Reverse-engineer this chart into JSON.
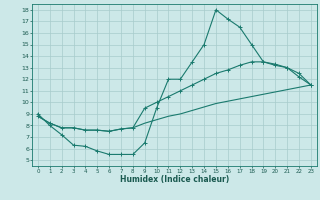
{
  "xlabel": "Humidex (Indice chaleur)",
  "bg_color": "#cce8e8",
  "grid_color": "#a8cccc",
  "line_color": "#1a7a6e",
  "xlim": [
    -0.5,
    23.5
  ],
  "ylim": [
    4.5,
    18.5
  ],
  "xticks": [
    0,
    1,
    2,
    3,
    4,
    5,
    6,
    7,
    8,
    9,
    10,
    11,
    12,
    13,
    14,
    15,
    16,
    17,
    18,
    19,
    20,
    21,
    22,
    23
  ],
  "yticks": [
    5,
    6,
    7,
    8,
    9,
    10,
    11,
    12,
    13,
    14,
    15,
    16,
    17,
    18
  ],
  "line1_x": [
    0,
    1,
    2,
    3,
    4,
    5,
    6,
    7,
    8,
    9,
    10,
    11,
    12,
    13,
    14,
    15,
    16,
    17,
    18,
    19,
    20,
    21,
    22,
    23
  ],
  "line1_y": [
    9.0,
    8.0,
    7.2,
    6.3,
    6.2,
    5.8,
    5.5,
    5.5,
    5.5,
    6.5,
    9.5,
    12.0,
    12.0,
    13.5,
    15.0,
    18.0,
    17.2,
    16.5,
    15.0,
    13.5,
    13.2,
    13.0,
    12.2,
    11.5
  ],
  "line2_x": [
    0,
    1,
    2,
    3,
    4,
    5,
    6,
    7,
    8,
    9,
    10,
    11,
    12,
    13,
    14,
    15,
    16,
    17,
    18,
    19,
    20,
    21,
    22,
    23
  ],
  "line2_y": [
    8.8,
    8.2,
    7.8,
    7.8,
    7.6,
    7.6,
    7.5,
    7.7,
    7.8,
    8.2,
    8.5,
    8.8,
    9.0,
    9.3,
    9.6,
    9.9,
    10.1,
    10.3,
    10.5,
    10.7,
    10.9,
    11.1,
    11.3,
    11.5
  ],
  "line3_x": [
    0,
    1,
    2,
    3,
    4,
    5,
    6,
    7,
    8,
    9,
    10,
    11,
    12,
    13,
    14,
    15,
    16,
    17,
    18,
    19,
    20,
    21,
    22,
    23
  ],
  "line3_y": [
    8.8,
    8.2,
    7.8,
    7.8,
    7.6,
    7.6,
    7.5,
    7.7,
    7.8,
    9.5,
    10.0,
    10.5,
    11.0,
    11.5,
    12.0,
    12.5,
    12.8,
    13.2,
    13.5,
    13.5,
    13.3,
    13.0,
    12.5,
    11.5
  ]
}
